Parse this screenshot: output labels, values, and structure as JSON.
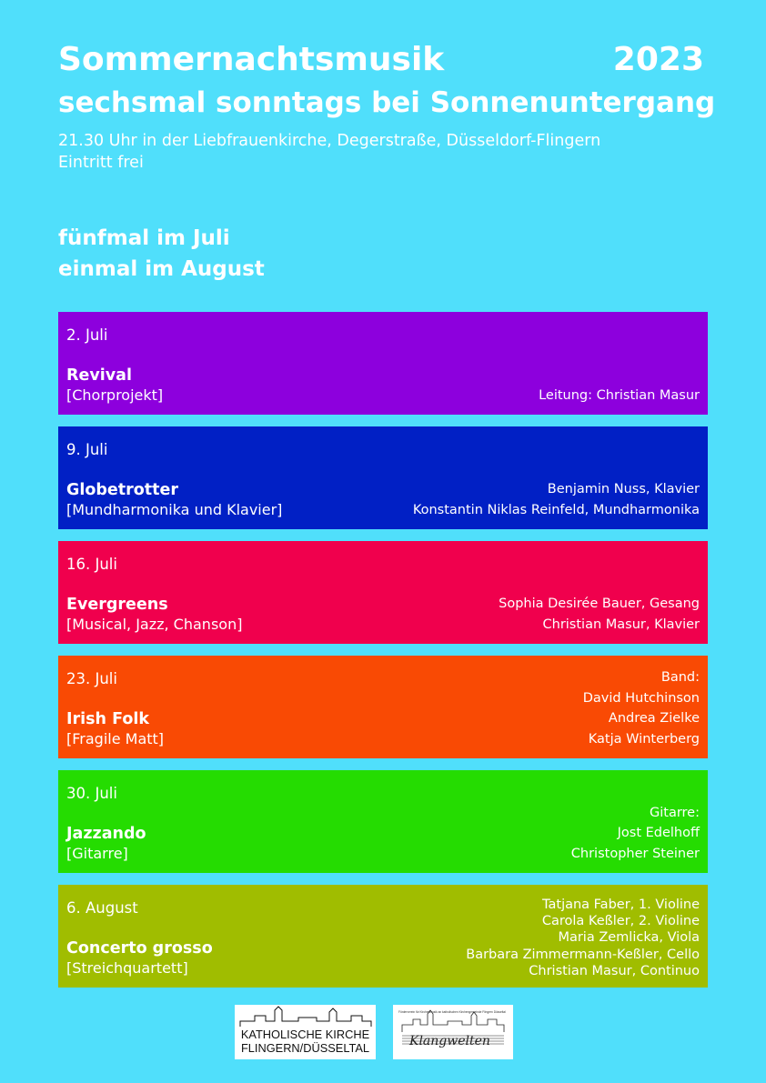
{
  "header": {
    "title": "Sommernachtsmusik",
    "year": "2023",
    "subtitle": "sechsmal sonntags bei Sonnenuntergang",
    "info_line1": "21.30 Uhr in der Liebfrauenkirche, Degerstraße, Düsseldorf-Flingern",
    "info_line2": "Eintritt frei"
  },
  "months": {
    "line1": "fünfmal im Juli",
    "line2": "einmal im August"
  },
  "events": [
    {
      "date": "2. Juli",
      "name": "Revival",
      "genre": "[Chorprojekt]",
      "color": "#8d00dd",
      "performers": [
        "Leitung: Christian Masur"
      ]
    },
    {
      "date": "9. Juli",
      "name": "Globetrotter",
      "genre": "[Mundharmonika und Klavier]",
      "color": "#0120c5",
      "performers": [
        "Benjamin Nuss, Klavier",
        "Konstantin Niklas Reinfeld, Mundharmonika"
      ]
    },
    {
      "date": "16. Juli",
      "name": "Evergreens",
      "genre": "[Musical, Jazz, Chanson]",
      "color": "#f0004d",
      "performers": [
        "Sophia Desirée Bauer, Gesang",
        "Christian Masur, Klavier"
      ]
    },
    {
      "date": "23. Juli",
      "name": "Irish Folk",
      "genre": "[Fragile Matt]",
      "color": "#f94a04",
      "performers": [
        "Band:",
        "David Hutchinson",
        "Andrea Zielke",
        "Katja Winterberg"
      ]
    },
    {
      "date": "30. Juli",
      "name": "Jazzando",
      "genre": "[Gitarre]",
      "color": "#25dc01",
      "performers": [
        "Gitarre:",
        "Jost Edelhoff",
        "Christopher Steiner"
      ]
    },
    {
      "date": "6. August",
      "name": "Concerto grosso",
      "genre": "[Streichquartett]",
      "color": "#a0bd00",
      "performers": [
        "Tatjana Faber, 1. Violine",
        "Carola Keßler, 2. Violine",
        "Maria Zemlicka, Viola",
        "Barbara Zimmermann-Keßler, Cello",
        "Christian Masur, Continuo"
      ]
    }
  ],
  "logos": {
    "kirche_line1": "KATHOLISCHE KIRCHE",
    "kirche_line2": "FLINGERN/DÜSSELTAL",
    "klangwelten_small": "Förderverein für Kirchenmusik an katholischen Kirchengemeinde Flingern Düsseltal",
    "klangwelten_script": "Klangwelten"
  }
}
